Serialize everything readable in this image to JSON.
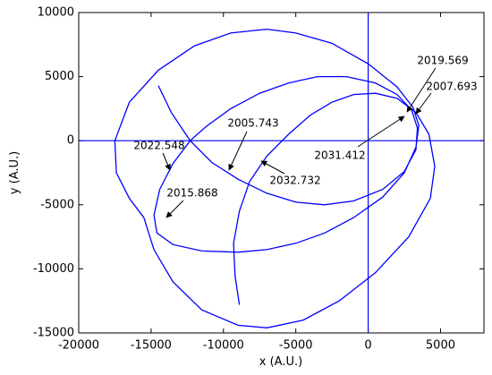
{
  "chart_data": {
    "type": "line",
    "xlabel": "x (A.U.)",
    "ylabel": "y (A.U.)",
    "color": "#0000ff",
    "xlim": [
      -20000,
      8000
    ],
    "ylim": [
      -15000,
      10000
    ],
    "xticks": [
      -20000,
      -15000,
      -10000,
      -5000,
      0,
      5000
    ],
    "yticks": [
      -15000,
      -10000,
      -5000,
      0,
      5000,
      10000
    ],
    "hlines": [
      0
    ],
    "vlines": [
      0
    ],
    "x": [
      -14500,
      -13600,
      -12300,
      -10800,
      -9000,
      -7000,
      -5000,
      -3000,
      -1000,
      1000,
      2500,
      3300,
      3400,
      3000,
      2000,
      500,
      -1500,
      -3500,
      -5500,
      -7500,
      -9500,
      -11200,
      -12300,
      -13500,
      -14400,
      -14800,
      -14600,
      -13500,
      -11500,
      -9000,
      -7000,
      -5000,
      -3000,
      -1000,
      1000,
      2500,
      3300,
      3500,
      3100,
      2000,
      0,
      -2500,
      -5000,
      -7000,
      -9500,
      -12000,
      -14500,
      -16500,
      -17500,
      -17400,
      -16500,
      -15500,
      -14800,
      -13500,
      -11500,
      -9000,
      -7000,
      -4500,
      -2000,
      500,
      2800,
      4300,
      4600,
      4200,
      3300,
      2000,
      500,
      -1000,
      -2500,
      -4000,
      -5500,
      -7000,
      -8200,
      -8900,
      -9300,
      -9200,
      -8900
    ],
    "y": [
      4300,
      2200,
      0,
      -1700,
      -3000,
      -4100,
      -4800,
      -5000,
      -4700,
      -3800,
      -2400,
      -700,
      1000,
      2400,
      3600,
      4500,
      5000,
      5000,
      4500,
      3700,
      2500,
      1100,
      0,
      -1800,
      -3800,
      -5800,
      -7200,
      -8100,
      -8600,
      -8700,
      -8500,
      -8000,
      -7200,
      -6000,
      -4400,
      -2500,
      -500,
      1200,
      2600,
      4200,
      6000,
      7600,
      8400,
      8700,
      8400,
      7400,
      5500,
      3000,
      0,
      -2500,
      -4500,
      -6000,
      -8500,
      -11000,
      -13200,
      -14400,
      -14600,
      -14000,
      -12500,
      -10300,
      -7500,
      -4500,
      -2000,
      500,
      2200,
      3300,
      3700,
      3600,
      3000,
      2000,
      500,
      -1200,
      -3200,
      -5500,
      -8000,
      -10500,
      -12800
    ],
    "annotations": [
      "2019.569",
      "2007.693",
      "2031.412",
      "2005.743",
      "2022.548",
      "2032.732",
      "2015.868"
    ]
  }
}
